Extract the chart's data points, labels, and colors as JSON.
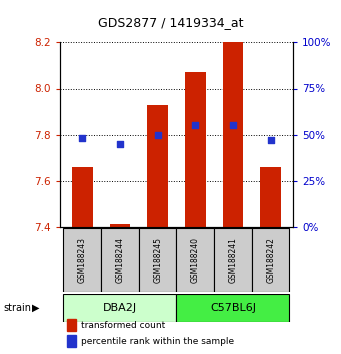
{
  "title": "GDS2877 / 1419334_at",
  "samples": [
    "GSM188243",
    "GSM188244",
    "GSM188245",
    "GSM188240",
    "GSM188241",
    "GSM188242"
  ],
  "red_values": [
    7.66,
    7.41,
    7.93,
    8.07,
    8.2,
    7.66
  ],
  "blue_values": [
    48,
    45,
    50,
    55,
    55,
    47
  ],
  "y_min": 7.4,
  "y_max": 8.2,
  "y_ticks": [
    7.4,
    7.6,
    7.8,
    8.0,
    8.2
  ],
  "y2_ticks": [
    0,
    25,
    50,
    75,
    100
  ],
  "bar_width": 0.55,
  "bar_color": "#cc2200",
  "dot_color": "#2233cc",
  "groups": [
    {
      "label": "DBA2J",
      "color": "#ccffcc"
    },
    {
      "label": "C57BL6J",
      "color": "#44ee44"
    }
  ],
  "strain_label": "strain",
  "legend_red": "transformed count",
  "legend_blue": "percentile rank within the sample",
  "sample_box_color": "#cccccc",
  "left_label_color": "#cc2200",
  "right_label_color": "#0000cc"
}
